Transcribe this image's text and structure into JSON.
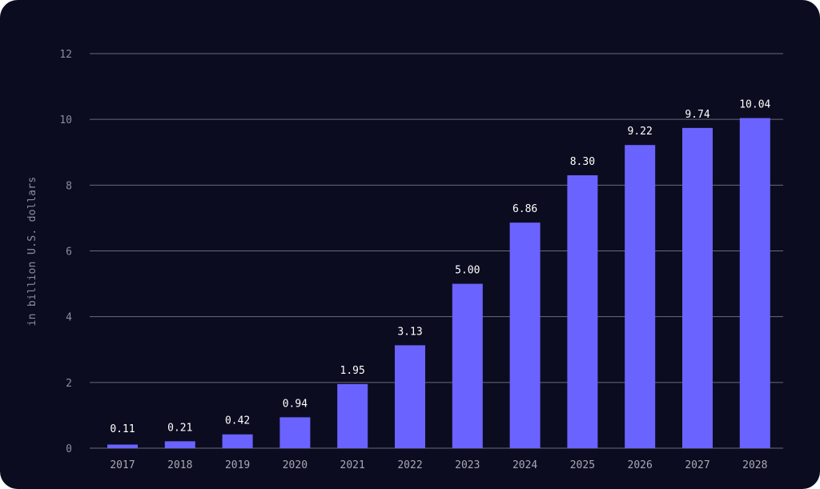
{
  "chart_data": {
    "type": "bar",
    "categories": [
      "2017",
      "2018",
      "2019",
      "2020",
      "2021",
      "2022",
      "2023",
      "2024",
      "2025",
      "2026",
      "2027",
      "2028"
    ],
    "values": [
      0.11,
      0.21,
      0.42,
      0.94,
      1.95,
      3.13,
      5.0,
      6.86,
      8.3,
      9.22,
      9.74,
      10.04
    ],
    "data_labels": [
      "0.11",
      "0.21",
      "0.42",
      "0.94",
      "1.95",
      "3.13",
      "5.00",
      "6.86",
      "8.30",
      "9.22",
      "9.74",
      "10.04"
    ],
    "title": "",
    "xlabel": "",
    "ylabel": "in billion U.S. dollars",
    "ylim": [
      0,
      12
    ],
    "yticks": [
      0,
      2,
      4,
      6,
      8,
      10,
      12
    ],
    "grid": true,
    "legend": "none",
    "colors": {
      "background": "#0c0c20",
      "bar": "#6b63ff",
      "grid": "#8a8a99"
    }
  }
}
